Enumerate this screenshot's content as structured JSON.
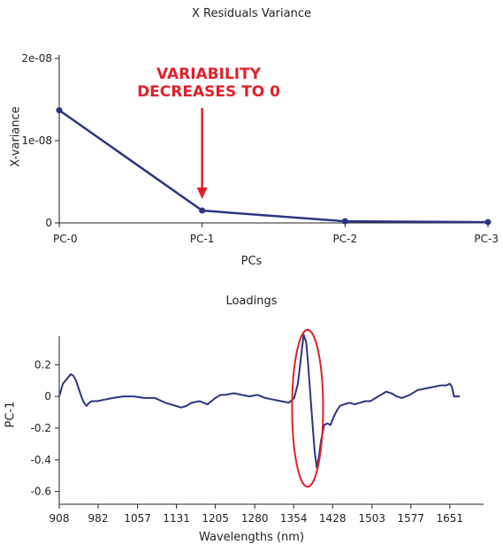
{
  "chart_data": [
    {
      "type": "line",
      "title": "X Residuals Variance",
      "xlabel": "PCs",
      "ylabel": "X-variance",
      "categories": [
        "PC-0",
        "PC-1",
        "PC-2",
        "PC-3"
      ],
      "values": [
        1.37e-08,
        1.5e-09,
        2e-10,
        1e-10
      ],
      "ylim": [
        0,
        2e-08
      ],
      "yticks": [
        0,
        1e-08,
        2e-08
      ],
      "ytick_labels": [
        "0",
        "1e-08",
        "2e-08"
      ],
      "line_color": "#2b3580",
      "grid": false,
      "annotation": {
        "text": "VARIABILITY DECREASES TO 0",
        "lines": [
          "VARIABILITY",
          "DECREASES TO 0"
        ],
        "color": "#e0202a",
        "points_to": "PC-1"
      }
    },
    {
      "type": "line",
      "title": "Loadings",
      "xlabel": "Wavelengths (nm)",
      "ylabel": "PC-1",
      "xlim": [
        908,
        1690
      ],
      "xticks": [
        908,
        982,
        1057,
        1131,
        1205,
        1280,
        1354,
        1428,
        1503,
        1577,
        1651
      ],
      "ylim": [
        -0.68,
        0.38
      ],
      "yticks": [
        -0.6,
        -0.4,
        -0.2,
        0,
        0.2
      ],
      "ytick_labels": [
        "-0.6",
        "-0.4",
        "-0.2",
        "0",
        "0.2"
      ],
      "line_color": "#2b3580",
      "grid": false,
      "highlight": {
        "shape": "ellipse",
        "color": "#e0202a",
        "x_range": [
          1351,
          1410
        ],
        "y_range": [
          -0.57,
          0.42
        ]
      },
      "x": [
        908,
        915,
        920,
        925,
        930,
        935,
        940,
        945,
        950,
        955,
        960,
        965,
        970,
        980,
        995,
        1010,
        1030,
        1050,
        1070,
        1090,
        1110,
        1130,
        1140,
        1150,
        1160,
        1175,
        1190,
        1205,
        1215,
        1225,
        1240,
        1255,
        1270,
        1285,
        1300,
        1315,
        1330,
        1345,
        1355,
        1362,
        1368,
        1373,
        1378,
        1382,
        1386,
        1390,
        1394,
        1398,
        1402,
        1406,
        1412,
        1418,
        1424,
        1430,
        1436,
        1442,
        1450,
        1460,
        1470,
        1480,
        1490,
        1500,
        1510,
        1520,
        1530,
        1540,
        1550,
        1560,
        1575,
        1590,
        1605,
        1620,
        1635,
        1645,
        1651,
        1655,
        1659,
        1670
      ],
      "values": [
        0.0,
        0.08,
        0.1,
        0.12,
        0.14,
        0.13,
        0.1,
        0.05,
        0.0,
        -0.04,
        -0.06,
        -0.04,
        -0.03,
        -0.03,
        -0.02,
        -0.01,
        0.0,
        0.0,
        -0.01,
        -0.01,
        -0.04,
        -0.06,
        -0.07,
        -0.06,
        -0.04,
        -0.03,
        -0.05,
        -0.01,
        0.01,
        0.01,
        0.02,
        0.01,
        0.0,
        0.01,
        -0.01,
        -0.02,
        -0.03,
        -0.04,
        -0.01,
        0.08,
        0.25,
        0.39,
        0.34,
        0.18,
        0.0,
        -0.18,
        -0.35,
        -0.45,
        -0.38,
        -0.28,
        -0.18,
        -0.17,
        -0.18,
        -0.13,
        -0.09,
        -0.06,
        -0.05,
        -0.04,
        -0.05,
        -0.04,
        -0.03,
        -0.03,
        -0.01,
        0.01,
        0.03,
        0.02,
        0.0,
        -0.01,
        0.01,
        0.04,
        0.05,
        0.06,
        0.07,
        0.07,
        0.08,
        0.06,
        0.0,
        0.0
      ]
    }
  ]
}
